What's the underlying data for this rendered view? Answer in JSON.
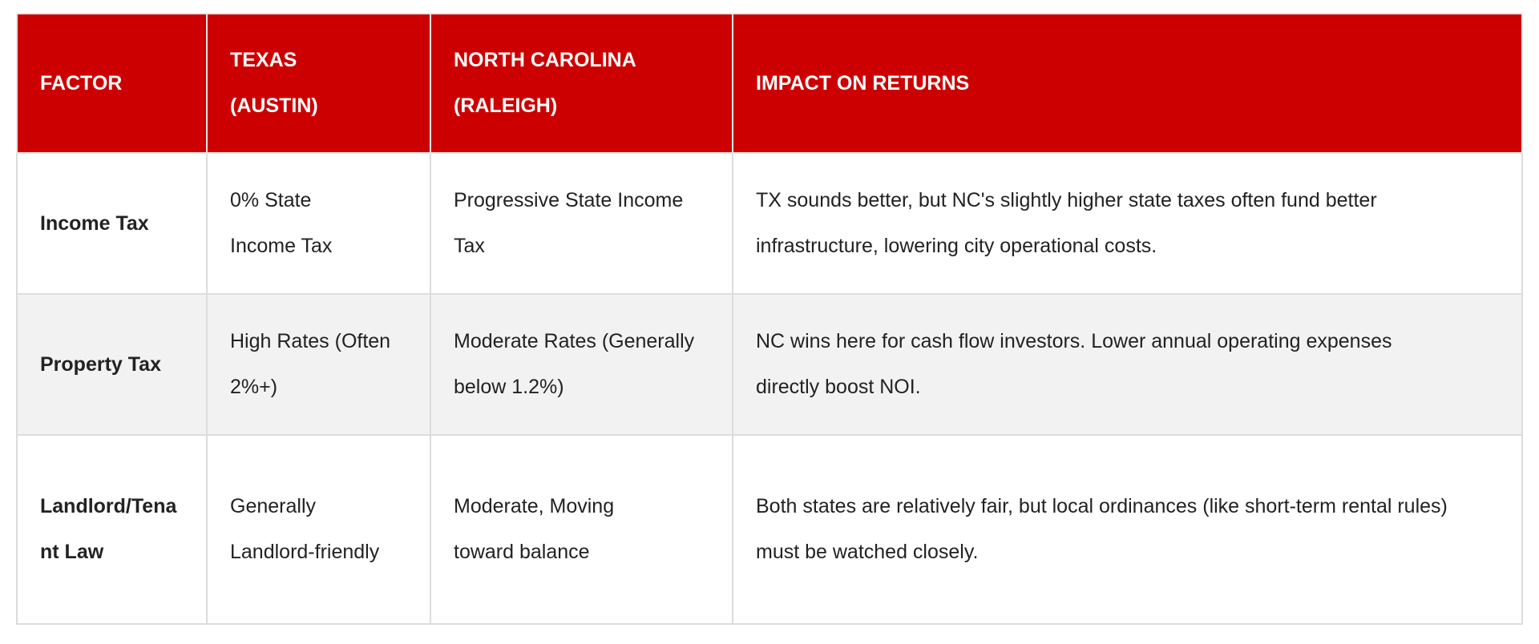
{
  "table": {
    "header_color": "#cc0000",
    "headers": [
      "FACTOR",
      "TEXAS (AUSTIN)",
      "NORTH CAROLINA (RALEIGH)",
      "IMPACT ON RETURNS"
    ],
    "rows": [
      {
        "factor": "Income Tax",
        "texas": "0% State Income Tax",
        "north_carolina": "Progressive State Income Tax",
        "impact": "TX sounds better, but NC's slightly higher state taxes often fund better infrastructure, lowering city operational costs."
      },
      {
        "factor": "Property Tax",
        "texas": "High Rates (Often 2%+)",
        "north_carolina": "Moderate Rates (Generally below 1.2%)",
        "impact": "NC wins here for cash flow investors. Lower annual operating expenses directly boost NOI."
      },
      {
        "factor": "Landlord/Tenant Law",
        "texas": "Generally Landlord-friendly",
        "north_carolina": "Moderate, Moving toward balance",
        "impact": "Both states are relatively fair, but local ordinances (like short-term rental rules) must be watched closely."
      }
    ]
  }
}
